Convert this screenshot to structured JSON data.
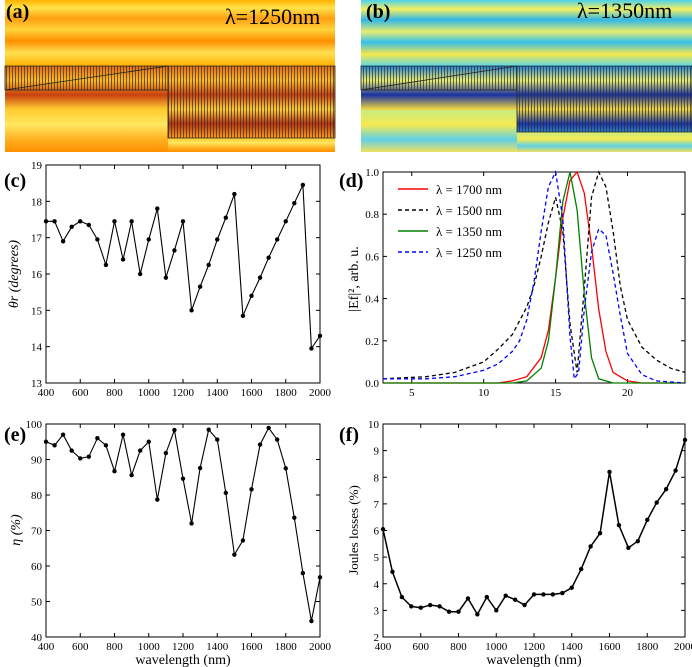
{
  "chart_data": [
    {
      "panel": "(a)",
      "type": "heatmap",
      "label": "(a)",
      "annotation": "λ=1250nm",
      "description_colors": [
        "#ffcc00",
        "#ff9900",
        "#cc2200"
      ],
      "palette": {
        "low": "#b23a1a",
        "mid": "#ff9a00",
        "high": "#ffe000"
      }
    },
    {
      "panel": "(b)",
      "type": "heatmap",
      "label": "(b)",
      "annotation": "λ=1350nm",
      "palette": {
        "low": "#1a2aa0",
        "mid": "#33c9e8",
        "high": "#ffe000"
      }
    },
    {
      "panel": "(c)",
      "type": "line",
      "label": "(c)",
      "xlabel": "wavelength (nm)",
      "ylabel": "θr (degrees)",
      "xlim": [
        400,
        2000
      ],
      "ylim": [
        13,
        19
      ],
      "xticks": [
        400,
        600,
        800,
        1000,
        1200,
        1400,
        1600,
        1800,
        2000
      ],
      "yticks": [
        13,
        14,
        15,
        16,
        17,
        18,
        19
      ],
      "x": [
        400,
        450,
        500,
        550,
        600,
        650,
        700,
        750,
        800,
        850,
        900,
        950,
        1000,
        1050,
        1100,
        1150,
        1200,
        1250,
        1300,
        1350,
        1400,
        1450,
        1500,
        1550,
        1600,
        1650,
        1700,
        1750,
        1800,
        1850,
        1900,
        1950,
        2000
      ],
      "y": [
        17.45,
        17.45,
        16.9,
        17.3,
        17.45,
        17.35,
        16.95,
        16.25,
        17.45,
        16.4,
        17.45,
        16.0,
        16.95,
        17.8,
        15.9,
        16.65,
        17.45,
        15.0,
        15.65,
        16.25,
        16.95,
        17.55,
        18.2,
        14.85,
        15.4,
        15.9,
        16.45,
        16.95,
        17.45,
        17.95,
        18.45,
        13.95,
        14.3
      ],
      "color": "#000000"
    },
    {
      "panel": "(d)",
      "type": "line",
      "label": "(d)",
      "ylabel": "|Ef|², arb. u.",
      "xlim": [
        3,
        24
      ],
      "ylim": [
        0,
        1.0
      ],
      "xticks": [
        5,
        10,
        15,
        20
      ],
      "yticks": [
        0.0,
        0.2,
        0.4,
        0.6,
        0.8,
        1.0
      ],
      "ytick_labels": [
        "0.0",
        "0.2",
        "0.4",
        "0.6",
        "0.8",
        "1.0"
      ],
      "series": [
        {
          "name": "λ = 1700 nm",
          "color": "#ff0000",
          "dash": "solid",
          "x": [
            3,
            11,
            12,
            13,
            14,
            14.5,
            15,
            15.5,
            16,
            16.5,
            17,
            17.5,
            18,
            18.5,
            19,
            20,
            21,
            22,
            24
          ],
          "y": [
            0,
            0.0,
            0.01,
            0.03,
            0.12,
            0.25,
            0.5,
            0.78,
            0.96,
            1.0,
            0.9,
            0.65,
            0.35,
            0.15,
            0.05,
            0.01,
            0.0,
            0.0,
            0.0
          ]
        },
        {
          "name": "λ = 1500 nm",
          "color": "#000000",
          "dash": "dashed",
          "x": [
            3,
            6,
            8,
            10,
            11,
            12,
            13,
            13.5,
            14,
            14.5,
            15,
            15.5,
            16,
            16.5,
            17,
            17.5,
            18,
            18.5,
            19,
            19.5,
            20,
            21,
            22,
            23,
            24
          ],
          "y": [
            0.02,
            0.03,
            0.05,
            0.1,
            0.16,
            0.23,
            0.36,
            0.46,
            0.6,
            0.76,
            0.88,
            0.72,
            0.28,
            0.05,
            0.45,
            0.88,
            1.0,
            0.93,
            0.72,
            0.46,
            0.3,
            0.17,
            0.11,
            0.07,
            0.05
          ]
        },
        {
          "name": "λ = 1350 nm",
          "color": "#008000",
          "dash": "solid",
          "x": [
            3,
            12,
            13,
            14,
            14.5,
            15,
            15.5,
            16,
            16.5,
            17,
            17.5,
            18,
            19,
            24
          ],
          "y": [
            0,
            0.0,
            0.01,
            0.07,
            0.2,
            0.5,
            0.86,
            1.0,
            0.82,
            0.42,
            0.12,
            0.02,
            0.0,
            0.0
          ]
        },
        {
          "name": "λ = 1250 nm",
          "color": "#0000ff",
          "dash": "dashed",
          "x": [
            3,
            6,
            8,
            10,
            11,
            12,
            12.5,
            13,
            13.5,
            14,
            14.5,
            15,
            15.5,
            16,
            16.3,
            16.6,
            17,
            17.5,
            18,
            18.5,
            19,
            19.5,
            20,
            21,
            22,
            24
          ],
          "y": [
            0.02,
            0.02,
            0.03,
            0.06,
            0.09,
            0.15,
            0.2,
            0.3,
            0.48,
            0.72,
            0.93,
            1.0,
            0.78,
            0.22,
            0.02,
            0.05,
            0.35,
            0.62,
            0.73,
            0.7,
            0.52,
            0.32,
            0.14,
            0.04,
            0.01,
            0.0
          ]
        }
      ],
      "legend_position": "upper-left"
    },
    {
      "panel": "(e)",
      "type": "line",
      "label": "(e)",
      "xlabel": "wavelength (nm)",
      "ylabel": "η (%)",
      "xlim": [
        400,
        2000
      ],
      "ylim": [
        40,
        100
      ],
      "xticks": [
        400,
        600,
        800,
        1000,
        1200,
        1400,
        1600,
        1800,
        2000
      ],
      "yticks": [
        40,
        50,
        60,
        70,
        80,
        90,
        100
      ],
      "x": [
        400,
        450,
        500,
        550,
        600,
        650,
        700,
        750,
        800,
        850,
        900,
        950,
        1000,
        1050,
        1100,
        1150,
        1200,
        1250,
        1300,
        1350,
        1400,
        1450,
        1500,
        1550,
        1600,
        1650,
        1700,
        1750,
        1800,
        1850,
        1900,
        1950,
        2000
      ],
      "y": [
        95,
        94,
        97,
        92.5,
        90.3,
        90.8,
        96,
        94,
        86.7,
        97,
        85.6,
        92.5,
        95,
        78.7,
        91.8,
        98.3,
        84.6,
        72,
        87.6,
        98.4,
        95.6,
        80.6,
        63.2,
        67.2,
        81.6,
        94.2,
        98.9,
        95.6,
        87.5,
        73.6,
        58,
        44.5,
        56.8
      ],
      "color": "#000000"
    },
    {
      "panel": "(f)",
      "type": "line",
      "label": "(f)",
      "xlabel": "wavelength (nm)",
      "ylabel": "Joules losses (%)",
      "xlim": [
        400,
        2000
      ],
      "ylim": [
        2,
        10
      ],
      "xticks": [
        400,
        600,
        800,
        1000,
        1200,
        1400,
        1600,
        1800,
        2000
      ],
      "yticks": [
        2,
        3,
        4,
        5,
        6,
        7,
        8,
        9,
        10
      ],
      "x": [
        400,
        450,
        500,
        550,
        600,
        650,
        700,
        750,
        800,
        850,
        900,
        950,
        1000,
        1050,
        1100,
        1150,
        1200,
        1250,
        1300,
        1350,
        1400,
        1450,
        1500,
        1550,
        1600,
        1650,
        1700,
        1750,
        1800,
        1850,
        1900,
        1950,
        2000
      ],
      "y": [
        6.05,
        4.45,
        3.5,
        3.15,
        3.1,
        3.2,
        3.15,
        2.95,
        2.95,
        3.45,
        2.85,
        3.5,
        3.0,
        3.55,
        3.4,
        3.2,
        3.6,
        3.6,
        3.6,
        3.65,
        3.85,
        4.55,
        5.4,
        5.9,
        8.2,
        6.2,
        5.35,
        5.6,
        6.4,
        7.05,
        7.55,
        8.25,
        9.4
      ],
      "color": "#000000"
    }
  ]
}
